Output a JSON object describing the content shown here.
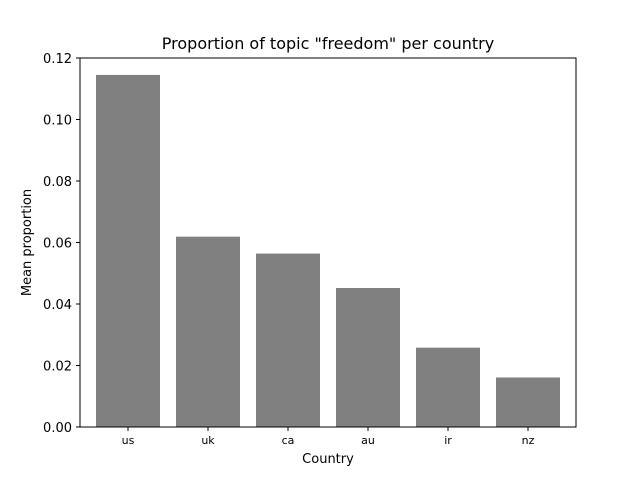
{
  "chart_data": {
    "type": "bar",
    "title": "Proportion of topic \"freedom\" per country",
    "xlabel": "Country",
    "ylabel": "Mean proportion",
    "categories": [
      "us",
      "uk",
      "ca",
      "au",
      "ir",
      "nz"
    ],
    "values": [
      0.1145,
      0.0619,
      0.0564,
      0.0452,
      0.0258,
      0.0161
    ],
    "ylim": [
      0,
      0.12
    ],
    "yticks": [
      0.0,
      0.02,
      0.04,
      0.06,
      0.08,
      0.1,
      0.12
    ],
    "ytick_labels": [
      "0.00",
      "0.02",
      "0.04",
      "0.06",
      "0.08",
      "0.10",
      "0.12"
    ],
    "bar_color": "#808080",
    "grid": false,
    "legend": "none"
  }
}
